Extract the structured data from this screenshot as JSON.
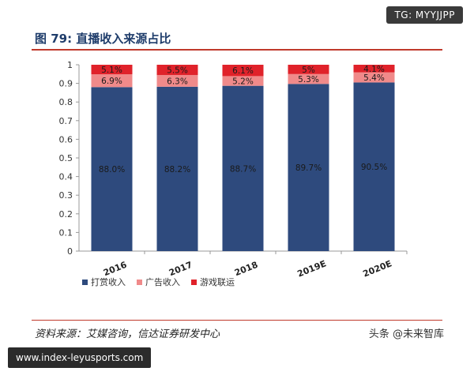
{
  "badge": "TG: MYYJJPP",
  "figure_title": "图 79: 直播收入来源占比",
  "source": "资料来源：艾媒咨询，信达证券研发中心",
  "watermark": "头条 @未来智库",
  "footer_url": "www.index-leyusports.com",
  "colors": {
    "tipping": "#2e4a7d",
    "ads": "#f08a8a",
    "games": "#e0222a"
  },
  "chart_data": {
    "type": "bar",
    "stacked": true,
    "categories": [
      "2016",
      "2017",
      "2018",
      "2019E",
      "2020E"
    ],
    "series": [
      {
        "name": "打赏收入",
        "values": [
          0.88,
          0.882,
          0.887,
          0.897,
          0.905
        ],
        "labels": [
          "88.0%",
          "88.2%",
          "88.7%",
          "89.7%",
          "90.5%"
        ]
      },
      {
        "name": "广告收入",
        "values": [
          0.069,
          0.063,
          0.052,
          0.053,
          0.054
        ],
        "labels": [
          "6.9%",
          "6.3%",
          "5.2%",
          "5.3%",
          "5.4%"
        ]
      },
      {
        "name": "游戏联运",
        "values": [
          0.051,
          0.055,
          0.061,
          0.05,
          0.041
        ],
        "labels": [
          "5.1%",
          "5.5%",
          "6.1%",
          "5%",
          "4.1%"
        ]
      }
    ],
    "yticks": [
      "0",
      "0.1",
      "0.2",
      "0.3",
      "0.4",
      "0.5",
      "0.6",
      "0.7",
      "0.8",
      "0.9",
      "1"
    ],
    "ylim": [
      0,
      1
    ],
    "legend_position": "bottom-left"
  }
}
